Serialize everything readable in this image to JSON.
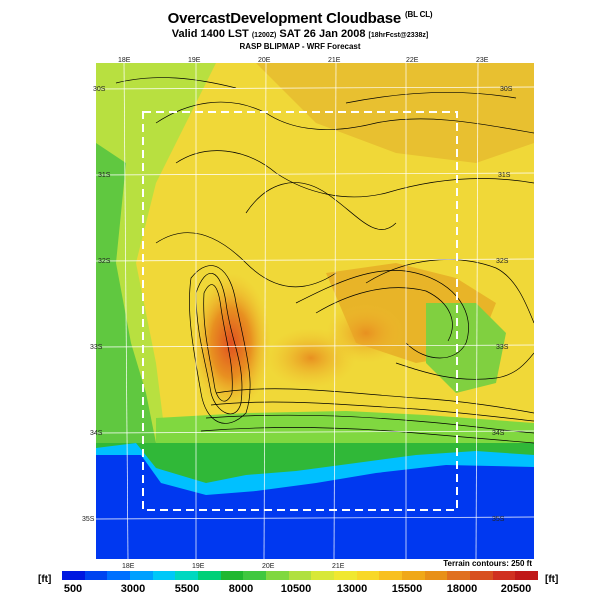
{
  "title": {
    "main": "OvercastDevelopment Cloudbase",
    "main_sub": "(BL CL)",
    "valid": "Valid 1400 LST",
    "valid_code": "(1200Z)",
    "date": "SAT 26 Jan 2008",
    "fcst": "[18hrFcst@2338z]",
    "model": "RASP BLIPMAP - WRF Forecast"
  },
  "map": {
    "lon_labels_top": [
      "18E",
      "19E",
      "20E",
      "21E",
      "22E",
      "23E"
    ],
    "lon_labels_bottom": [
      "18E",
      "19E",
      "20E",
      "21E"
    ],
    "lat_labels_left": [
      "30S",
      "31S",
      "32S",
      "33S",
      "34S",
      "35S"
    ],
    "lat_labels_right": [
      "30S",
      "31S",
      "32S",
      "33S",
      "34S",
      "35S"
    ],
    "terrain_note": "Terrain contours: 250 ft"
  },
  "colorbar": {
    "unit_left": "[ft]",
    "unit_right": "[ft]",
    "ticks": [
      "500",
      "3000",
      "5500",
      "8000",
      "10500",
      "13000",
      "15500",
      "18000",
      "20500"
    ],
    "colors": [
      "#0018e0",
      "#0044f0",
      "#0070ff",
      "#00a0ff",
      "#00c8f8",
      "#00d8c0",
      "#00d078",
      "#20b830",
      "#40c840",
      "#80d840",
      "#b0e040",
      "#d8e838",
      "#f0e830",
      "#f8d828",
      "#f8c020",
      "#f0a818",
      "#e89018",
      "#e07020",
      "#d85020",
      "#d03020",
      "#c01818"
    ]
  },
  "legend_colors": {
    "sea": "#0038f0",
    "coast": "#10b040",
    "lowland": "#70d040",
    "plateau": "#f0d030",
    "peak": "#e05020"
  }
}
